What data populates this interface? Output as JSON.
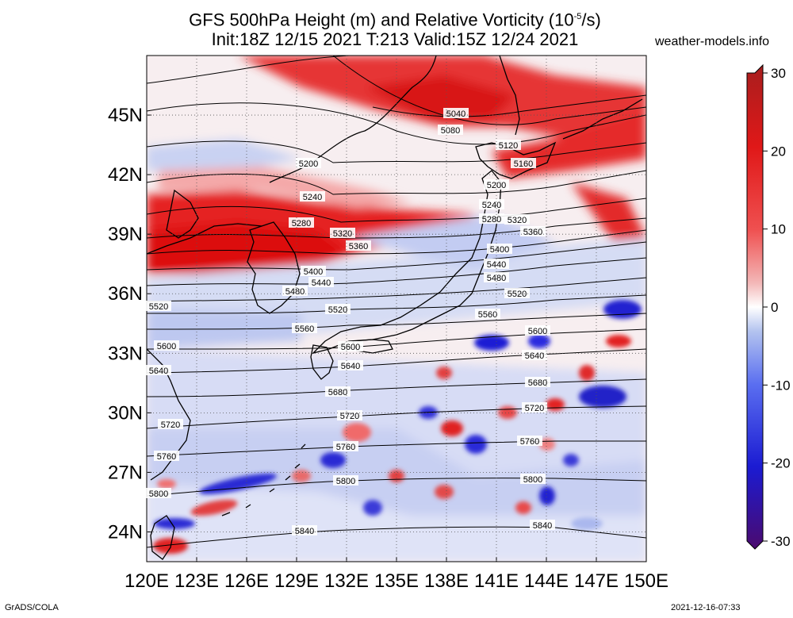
{
  "title": {
    "line1_pre": "GFS 500hPa Height (m) and Relative Vorticity (10",
    "line1_sup": "-5",
    "line1_post": "/s)",
    "line2": "Init:18Z 12/15 2021 T:213 Valid:15Z 12/24 2021"
  },
  "site": "weather-models.info",
  "footer": {
    "left": "GrADS/COLA",
    "right": "2021-12-16-07:33"
  },
  "map": {
    "lon_range": [
      120,
      150
    ],
    "lat_range": [
      22.5,
      48
    ],
    "lon_ticks": [
      "120E",
      "123E",
      "126E",
      "129E",
      "132E",
      "135E",
      "138E",
      "141E",
      "144E",
      "147E",
      "150E"
    ],
    "lat_ticks": [
      "24N",
      "27N",
      "30N",
      "33N",
      "36N",
      "39N",
      "42N",
      "45N"
    ],
    "contour_labels": [
      "5040",
      "5080",
      "5120",
      "5160",
      "5200",
      "5240",
      "5280",
      "5320",
      "5360",
      "5400",
      "5440",
      "5480",
      "5520",
      "5560",
      "5600",
      "5640",
      "5680",
      "5720",
      "5760",
      "5800",
      "5840"
    ]
  },
  "colorbar": {
    "ticks": [
      "30",
      "20",
      "10",
      "0",
      "-10",
      "-20",
      "-30"
    ],
    "range": [
      -30,
      30
    ],
    "colors": [
      "#4b0a6e",
      "#1b1bd2",
      "#5a6ef0",
      "#b3c3ef",
      "#ffffff",
      "#f3b7b7",
      "#ef5050",
      "#e01818",
      "#a81e1e"
    ]
  }
}
